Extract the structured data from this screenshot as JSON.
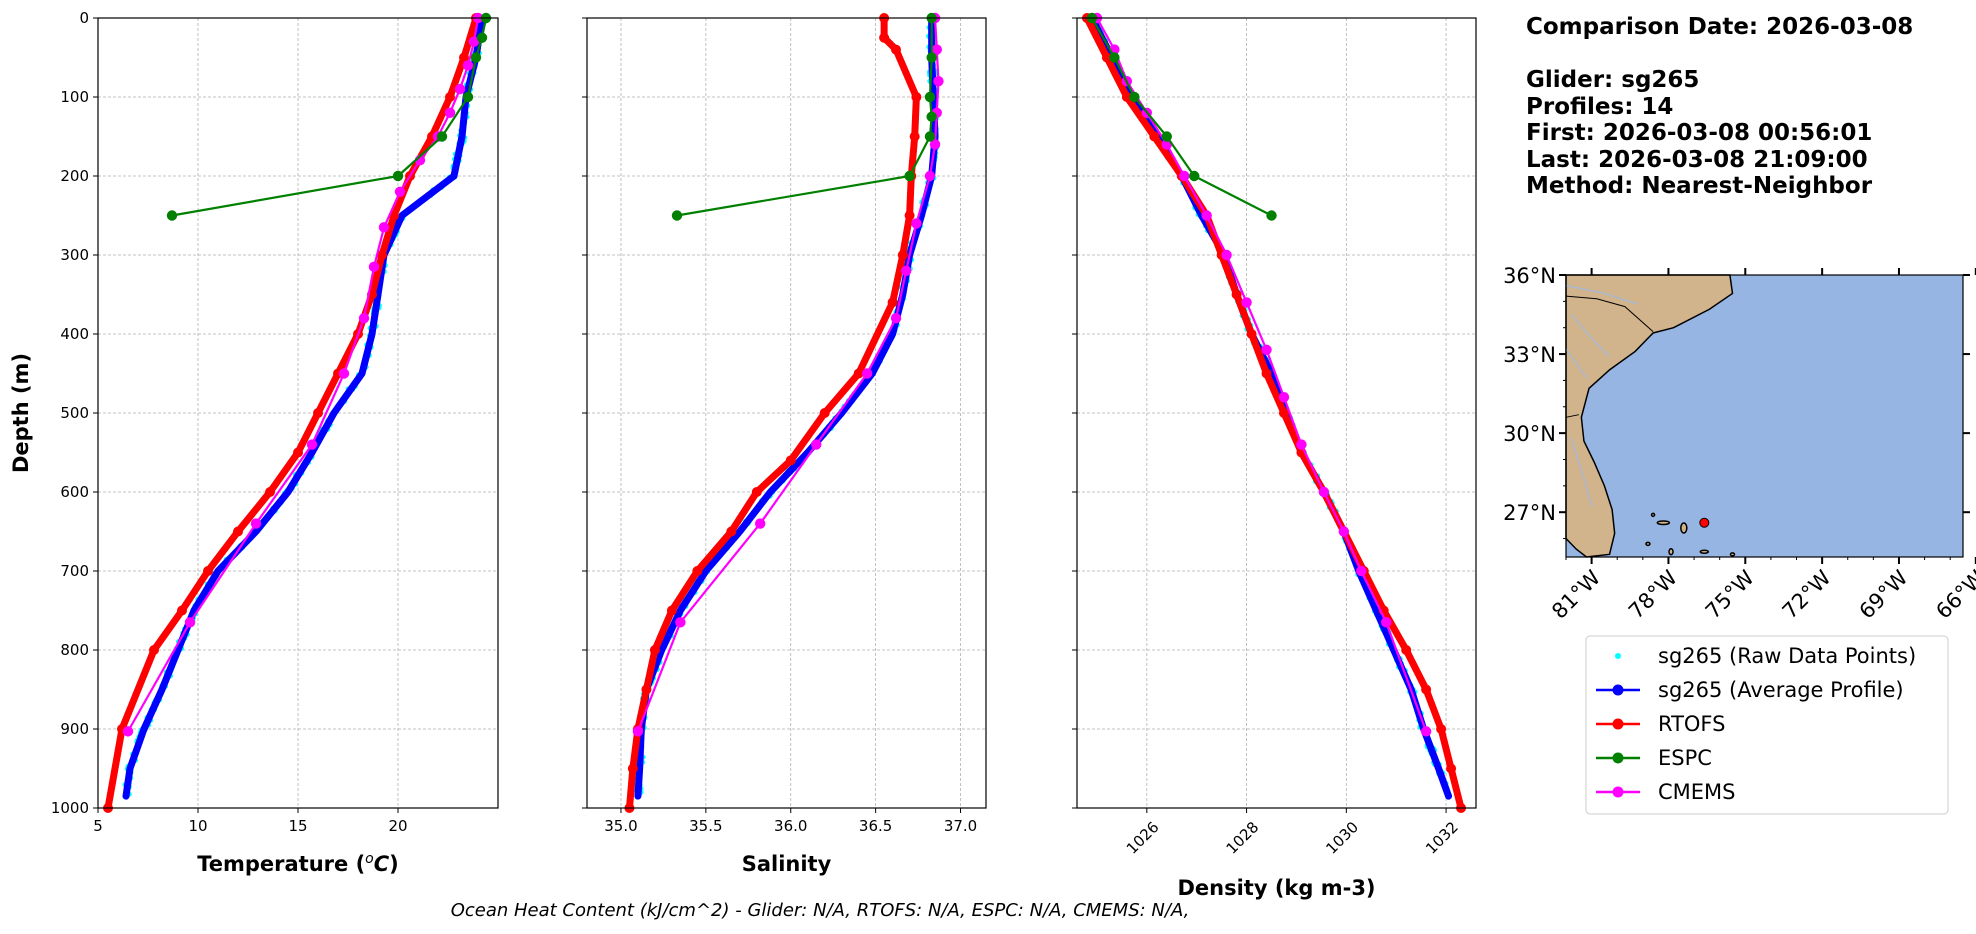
{
  "info": {
    "comparison_date": "Comparison Date: 2026-03-08",
    "glider": "Glider: sg265",
    "profiles": "Profiles: 14",
    "first": "First: 2026-03-08 00:56:01",
    "last": "Last: 2026-03-08 21:09:00",
    "method": "Method: Nearest-Neighbor"
  },
  "footer": "Ocean Heat Content (kJ/cm^2) - Glider: N/A,  RTOFS: N/A,  ESPC: N/A,  CMEMS: N/A,",
  "colors": {
    "raw": "#00ffff",
    "glider": "#0000ff",
    "rtofs": "#ff0000",
    "espc": "#008000",
    "cmems": "#ff00ff",
    "land": "#d2b48c",
    "ocean": "#96b5e2"
  },
  "legend": [
    {
      "label": "sg265 (Raw Data Points)",
      "key": "raw"
    },
    {
      "label": "sg265 (Average Profile)",
      "key": "glider"
    },
    {
      "label": "RTOFS",
      "key": "rtofs"
    },
    {
      "label": "ESPC",
      "key": "espc"
    },
    {
      "label": "CMEMS",
      "key": "cmems"
    }
  ],
  "map": {
    "lat_labels": [
      "36°N",
      "33°N",
      "30°N",
      "27°N"
    ],
    "lon_labels": [
      "81°W",
      "78°W",
      "75°W",
      "72°W",
      "69°W",
      "66°W"
    ],
    "lat_values": [
      36,
      33,
      30,
      27
    ],
    "lon_values": [
      -81,
      -78,
      -75,
      -72,
      -69,
      -66
    ],
    "extent": {
      "lon": [
        -82,
        -66.5
      ],
      "lat": [
        25.3,
        36
      ]
    },
    "glider_location": {
      "lon": -76.6,
      "lat": 26.6
    }
  },
  "chart_data": [
    {
      "type": "line",
      "xlabel": "Temperature (°C)",
      "ylabel": "Depth (m)",
      "xlim": [
        5,
        25
      ],
      "ylim": [
        1000,
        0
      ],
      "xticks": [
        5,
        10,
        15,
        20
      ],
      "yticks": [
        0,
        100,
        200,
        300,
        400,
        500,
        600,
        700,
        800,
        900,
        1000
      ],
      "grid": true,
      "series": [
        {
          "name": "sg265 (Average Profile)",
          "key": "glider",
          "depth": [
            0,
            50,
            100,
            150,
            200,
            250,
            300,
            350,
            400,
            450,
            500,
            550,
            600,
            650,
            700,
            750,
            800,
            850,
            900,
            950,
            985
          ],
          "values": [
            24.2,
            23.9,
            23.4,
            23.2,
            22.8,
            20.2,
            19.3,
            19.0,
            18.7,
            18.2,
            16.8,
            15.7,
            14.5,
            12.9,
            11.0,
            9.8,
            9.0,
            8.2,
            7.3,
            6.6,
            6.4
          ]
        },
        {
          "name": "RTOFS",
          "key": "rtofs",
          "depth": [
            0,
            50,
            100,
            150,
            200,
            250,
            300,
            350,
            400,
            450,
            500,
            550,
            600,
            650,
            700,
            750,
            800,
            900,
            1000
          ],
          "values": [
            23.9,
            23.3,
            22.6,
            21.7,
            20.6,
            19.8,
            19.2,
            18.7,
            18.0,
            17.0,
            16.0,
            15.0,
            13.6,
            12.0,
            10.5,
            9.2,
            7.8,
            6.2,
            5.5
          ]
        },
        {
          "name": "ESPC",
          "key": "espc",
          "depth": [
            0,
            25,
            50,
            100,
            150,
            200,
            250
          ],
          "values": [
            24.4,
            24.2,
            23.9,
            23.5,
            22.2,
            20.0,
            8.7
          ]
        },
        {
          "name": "CMEMS",
          "key": "cmems",
          "depth": [
            0,
            30,
            60,
            90,
            120,
            150,
            180,
            220,
            265,
            315,
            380,
            450,
            540,
            640,
            765,
            903
          ],
          "values": [
            24.0,
            23.8,
            23.5,
            23.1,
            22.6,
            22.0,
            21.1,
            20.1,
            19.3,
            18.8,
            18.3,
            17.3,
            15.7,
            12.9,
            9.6,
            6.5
          ]
        }
      ]
    },
    {
      "type": "line",
      "xlabel": "Salinity",
      "xlim": [
        34.8,
        37.15
      ],
      "ylim": [
        1000,
        0
      ],
      "xticks": [
        35.0,
        35.5,
        36.0,
        36.5,
        37.0
      ],
      "xtick_labels": [
        "35.0",
        "35.5",
        "36.0",
        "36.5",
        "37.0"
      ],
      "yticks": [
        0,
        100,
        200,
        300,
        400,
        500,
        600,
        700,
        800,
        900,
        1000
      ],
      "grid": true,
      "series": [
        {
          "name": "sg265 (Average Profile)",
          "key": "glider",
          "depth": [
            0,
            50,
            100,
            150,
            200,
            250,
            300,
            350,
            400,
            450,
            500,
            550,
            600,
            650,
            700,
            750,
            800,
            850,
            900,
            950,
            985
          ],
          "values": [
            36.83,
            36.83,
            36.84,
            36.85,
            36.83,
            36.77,
            36.7,
            36.66,
            36.6,
            36.48,
            36.3,
            36.1,
            35.88,
            35.7,
            35.5,
            35.35,
            35.24,
            35.15,
            35.12,
            35.11,
            35.1
          ]
        },
        {
          "name": "RTOFS",
          "key": "rtofs",
          "depth": [
            0,
            25,
            40,
            100,
            150,
            200,
            250,
            300,
            360,
            450,
            500,
            560,
            600,
            650,
            700,
            750,
            800,
            850,
            900,
            950,
            1000
          ],
          "values": [
            36.55,
            36.55,
            36.62,
            36.74,
            36.73,
            36.71,
            36.7,
            36.66,
            36.6,
            36.4,
            36.2,
            36.0,
            35.8,
            35.65,
            35.45,
            35.3,
            35.2,
            35.15,
            35.1,
            35.07,
            35.05
          ]
        },
        {
          "name": "ESPC",
          "key": "espc",
          "depth": [
            0,
            50,
            100,
            125,
            150,
            200,
            250
          ],
          "values": [
            36.83,
            36.83,
            36.82,
            36.83,
            36.82,
            36.7,
            35.33
          ]
        },
        {
          "name": "CMEMS",
          "key": "cmems",
          "depth": [
            0,
            40,
            80,
            120,
            160,
            200,
            260,
            320,
            380,
            450,
            540,
            640,
            765,
            903
          ],
          "values": [
            36.85,
            36.86,
            36.87,
            36.86,
            36.85,
            36.82,
            36.74,
            36.68,
            36.62,
            36.45,
            36.15,
            35.82,
            35.35,
            35.1
          ]
        }
      ]
    },
    {
      "type": "line",
      "xlabel": "Density (kg m-3)",
      "xlim": [
        1024.6,
        1032.6
      ],
      "ylim": [
        1000,
        0
      ],
      "xticks": [
        1026,
        1028,
        1030,
        1032
      ],
      "yticks": [
        0,
        100,
        200,
        300,
        400,
        500,
        600,
        700,
        800,
        900,
        1000
      ],
      "grid": true,
      "series": [
        {
          "name": "sg265 (Average Profile)",
          "key": "glider",
          "depth": [
            0,
            50,
            100,
            150,
            200,
            250,
            300,
            350,
            400,
            450,
            500,
            550,
            600,
            650,
            700,
            750,
            800,
            850,
            900,
            950,
            985
          ],
          "values": [
            1024.9,
            1025.3,
            1025.7,
            1026.2,
            1026.7,
            1027.1,
            1027.55,
            1027.8,
            1028.1,
            1028.5,
            1028.8,
            1029.1,
            1029.55,
            1029.95,
            1030.25,
            1030.6,
            1030.95,
            1031.3,
            1031.55,
            1031.85,
            1032.05
          ]
        },
        {
          "name": "RTOFS",
          "key": "rtofs",
          "depth": [
            0,
            50,
            100,
            150,
            200,
            250,
            300,
            350,
            400,
            450,
            500,
            550,
            600,
            650,
            700,
            750,
            800,
            850,
            900,
            950,
            1000
          ],
          "values": [
            1024.8,
            1025.2,
            1025.6,
            1026.15,
            1026.7,
            1027.2,
            1027.5,
            1027.8,
            1028.1,
            1028.4,
            1028.75,
            1029.1,
            1029.55,
            1029.95,
            1030.35,
            1030.75,
            1031.2,
            1031.6,
            1031.9,
            1032.1,
            1032.3
          ]
        },
        {
          "name": "ESPC",
          "key": "espc",
          "depth": [
            0,
            50,
            100,
            150,
            200,
            250
          ],
          "values": [
            1024.9,
            1025.35,
            1025.75,
            1026.4,
            1026.95,
            1028.5
          ]
        },
        {
          "name": "CMEMS",
          "key": "cmems",
          "depth": [
            0,
            40,
            80,
            120,
            160,
            200,
            250,
            300,
            360,
            420,
            480,
            540,
            600,
            650,
            700,
            765,
            903
          ],
          "values": [
            1025.0,
            1025.35,
            1025.6,
            1026.0,
            1026.4,
            1026.75,
            1027.2,
            1027.6,
            1028.0,
            1028.4,
            1028.75,
            1029.1,
            1029.55,
            1029.95,
            1030.3,
            1030.8,
            1031.6
          ]
        }
      ]
    }
  ]
}
